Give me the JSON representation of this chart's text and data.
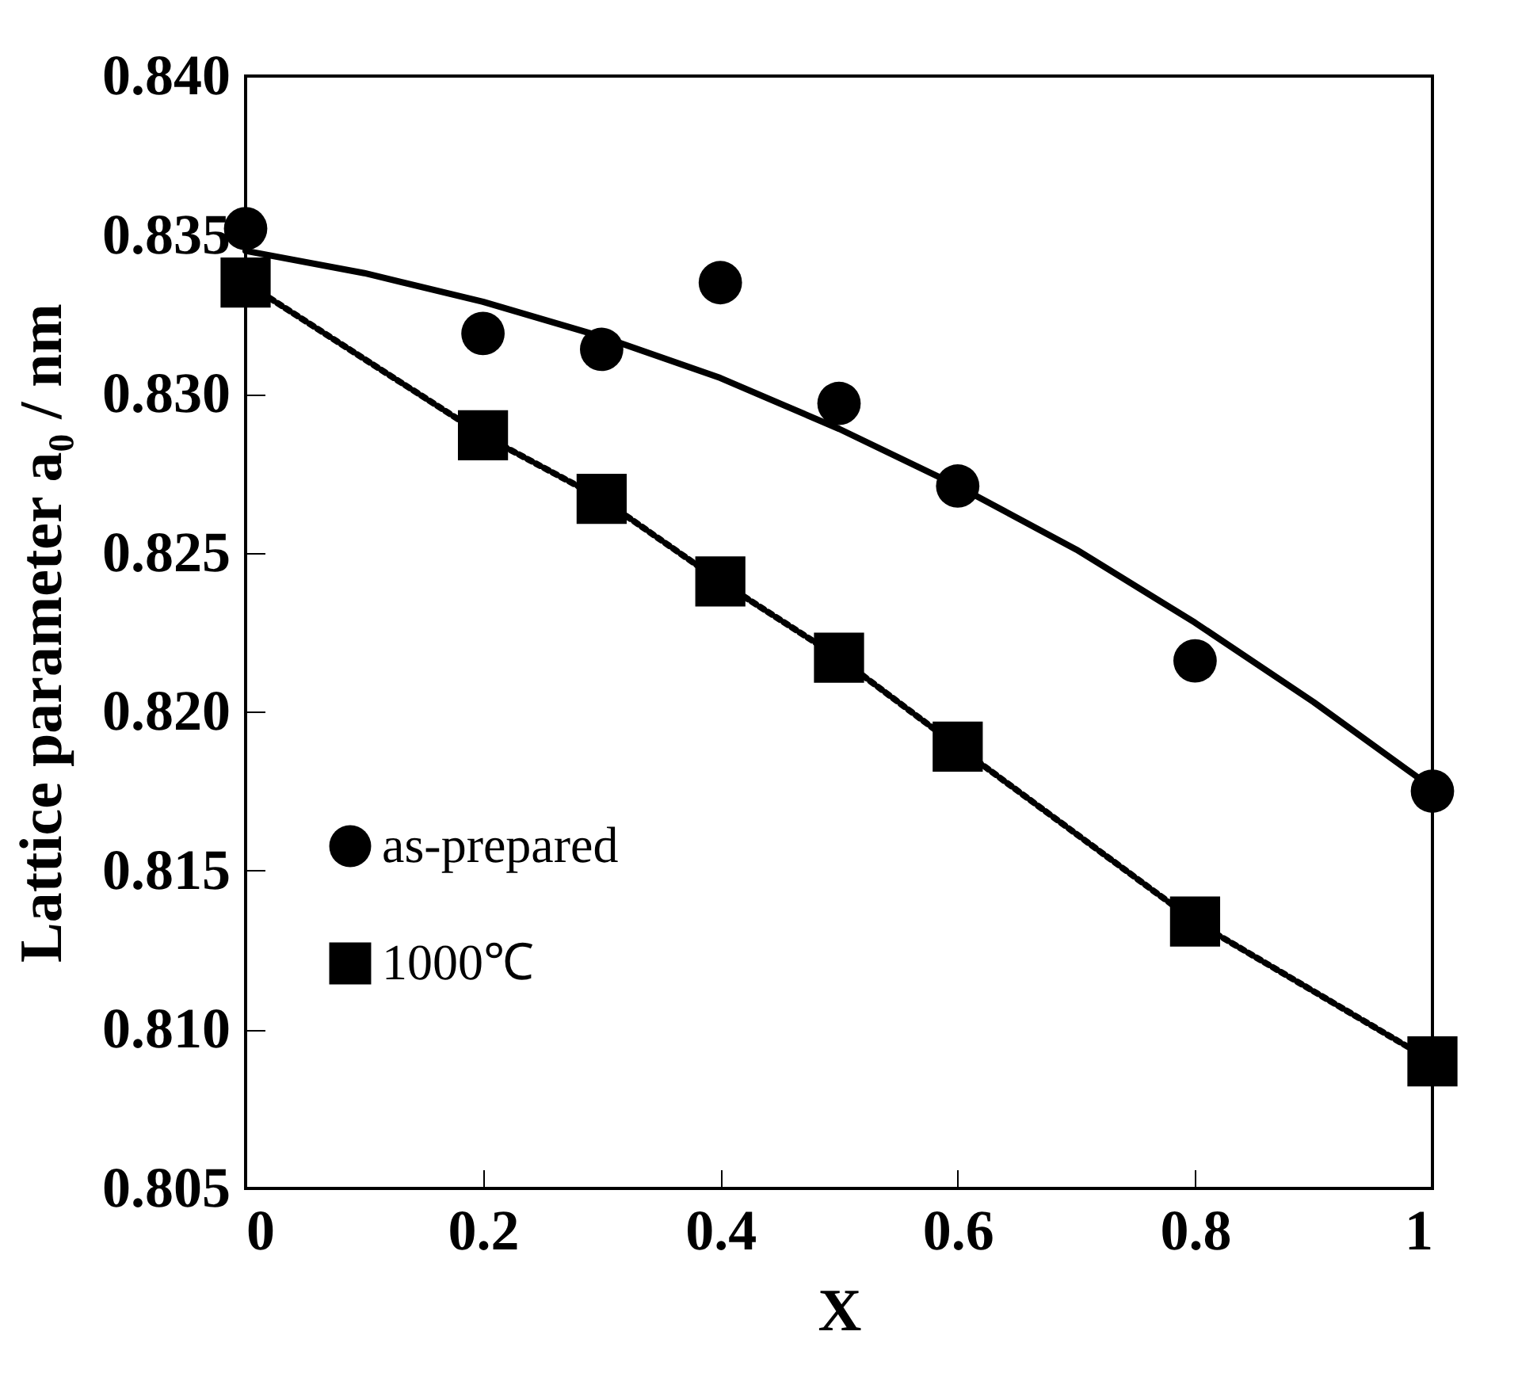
{
  "chart_data": {
    "type": "scatter",
    "xlabel": "X",
    "ylabel": "Lattice parameter a₀ / nm",
    "xlim": [
      0,
      1
    ],
    "xticks": [
      0,
      0.2,
      0.4,
      0.6,
      0.8,
      1
    ],
    "ylim": [
      0.805,
      0.84
    ],
    "yticks": [
      0.805,
      {
        "value": 0.81,
        "label": "0.810"
      },
      0.815,
      {
        "value": 0.82,
        "label": "0.820"
      },
      0.825,
      {
        "value": 0.83,
        "label": "0.830"
      },
      0.835,
      {
        "value": 0.84,
        "label": "0.840"
      }
    ],
    "grid": false,
    "legend": "bottom left",
    "series": [
      {
        "name": "as-prepared",
        "type": "scatter",
        "marker": "circle",
        "color": "#000000",
        "x": [
          0,
          0.2,
          0.3,
          0.4,
          0.5,
          0.6,
          0.8,
          1
        ],
        "values": [
          0.8352,
          0.8319,
          0.8314,
          0.8335,
          0.8297,
          0.8271,
          0.8216,
          0.8175
        ]
      },
      {
        "type": "line",
        "marker": "none",
        "line_style": "solid",
        "color": "#000000",
        "x": [
          0,
          0.1,
          0.2,
          0.3,
          0.4,
          0.5,
          0.6,
          0.7,
          0.8,
          0.9,
          1
        ],
        "values": [
          0.8345,
          0.8338,
          0.8329,
          0.8318,
          0.8305,
          0.8289,
          0.8271,
          0.8251,
          0.8228,
          0.8203,
          0.8176
        ]
      },
      {
        "name": "1000℃",
        "type": "line",
        "marker": "square",
        "line_style": "dotted",
        "color": "#000000",
        "x": [
          0,
          0.2,
          0.3,
          0.4,
          0.5,
          0.6,
          0.8,
          1
        ],
        "values": [
          0.8335,
          0.8287,
          0.8267,
          0.8241,
          0.8217,
          0.8189,
          0.8134,
          0.809
        ]
      }
    ]
  }
}
